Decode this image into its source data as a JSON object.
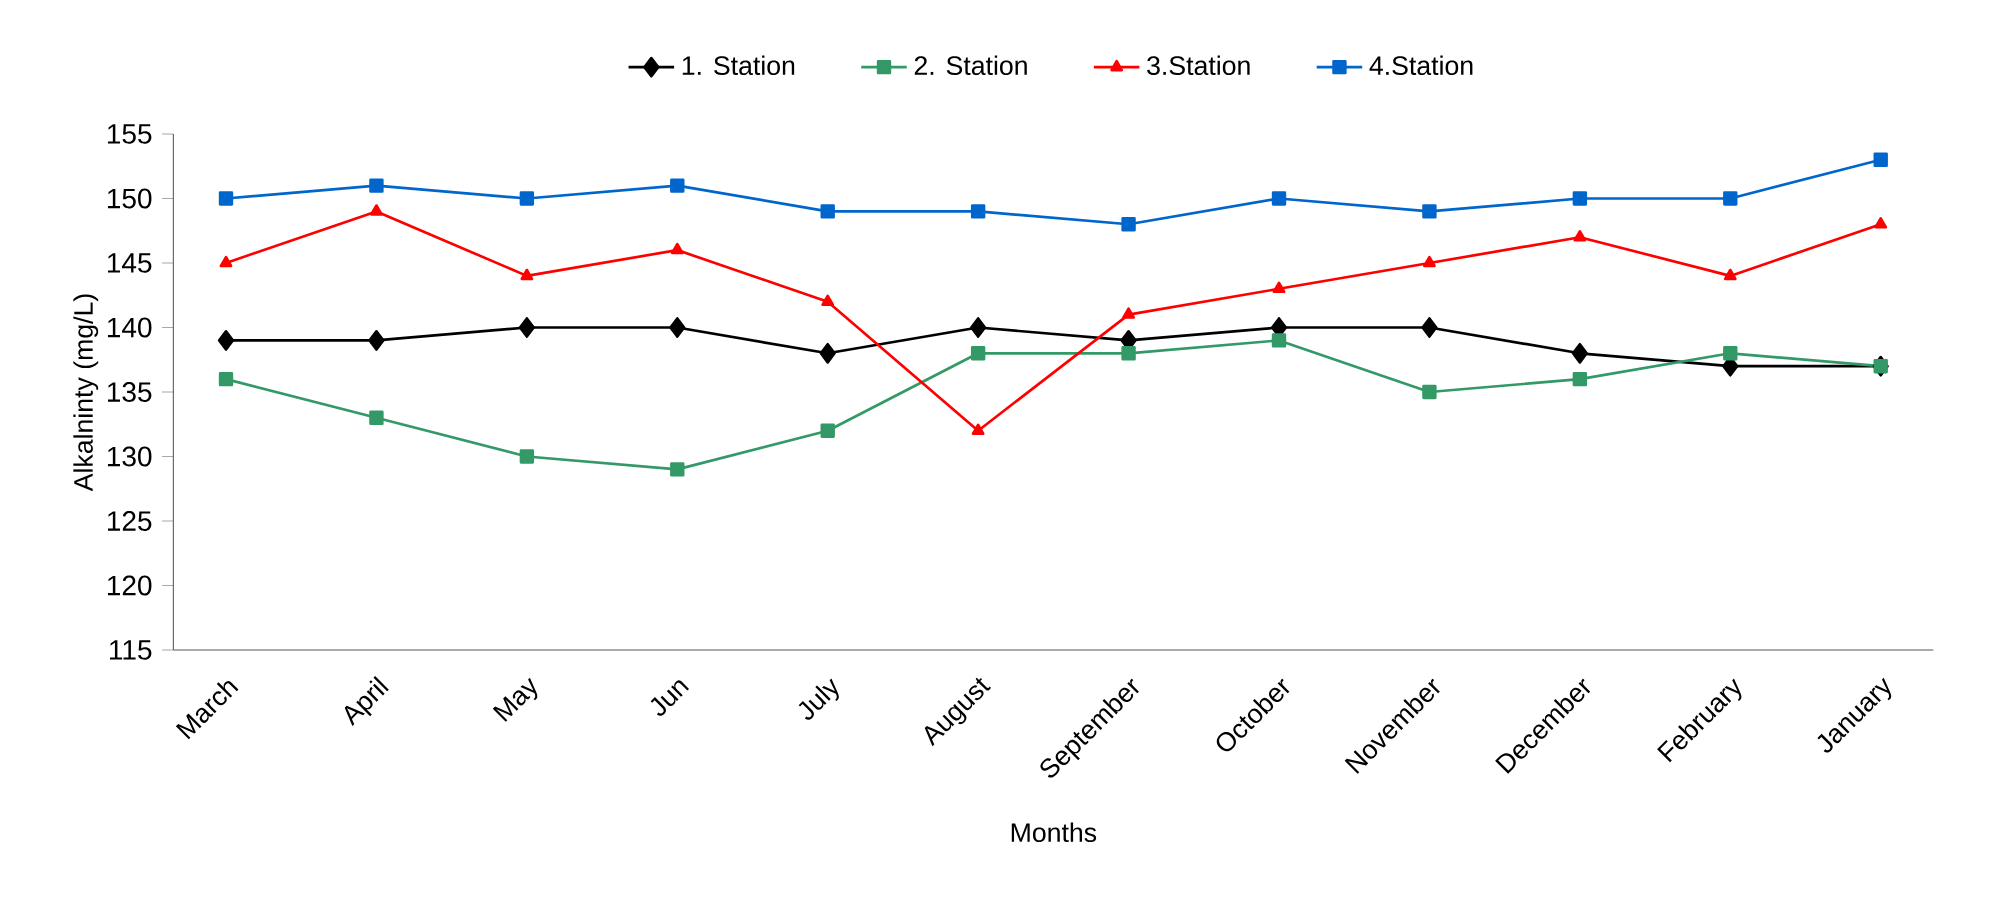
{
  "chart_data": {
    "type": "line",
    "xlabel": "Months",
    "ylabel": "Alkalninty (mg/L)",
    "categories": [
      "March",
      "April",
      "May",
      "Jun",
      "July",
      "August",
      "September",
      "October",
      "November",
      "December",
      "February",
      "January"
    ],
    "series": [
      {
        "name": "1. Station",
        "color": "#000000",
        "marker": "diamond",
        "values": [
          139,
          139,
          140,
          140,
          138,
          140,
          139,
          140,
          140,
          138,
          137,
          137
        ]
      },
      {
        "name": "2. Station",
        "color": "#339966",
        "marker": "square",
        "values": [
          136,
          133,
          130,
          129,
          132,
          138,
          138,
          139,
          135,
          136,
          138,
          137
        ]
      },
      {
        "name": "3.Station",
        "color": "#ff0000",
        "marker": "triangle",
        "values": [
          145,
          149,
          144,
          146,
          142,
          132,
          141,
          143,
          145,
          147,
          144,
          148
        ]
      },
      {
        "name": "4.Station",
        "color": "#0066cc",
        "marker": "square",
        "values": [
          150,
          151,
          150,
          151,
          149,
          149,
          148,
          150,
          149,
          150,
          150,
          153
        ]
      }
    ],
    "ylim": [
      115,
      155
    ],
    "yticks": [
      115,
      120,
      125,
      130,
      135,
      140,
      145,
      150,
      155
    ],
    "grid": false,
    "legend": "top",
    "line_style": "solid"
  }
}
